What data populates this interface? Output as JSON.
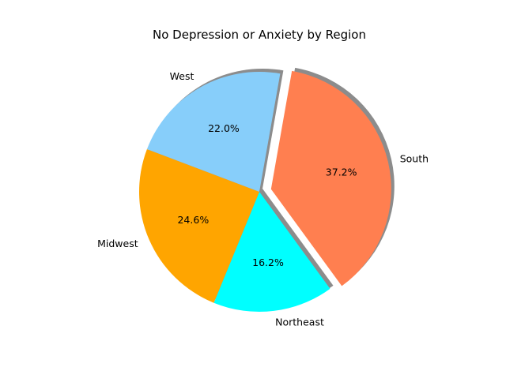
{
  "chart_data": {
    "type": "pie",
    "title": "No Depression or Anxiety by Region",
    "categories": [
      "South",
      "Northeast",
      "Midwest",
      "West"
    ],
    "values": [
      37.2,
      16.2,
      24.6,
      22.0
    ],
    "value_labels": [
      "37.2%",
      "16.2%",
      "24.6%",
      "22.0%"
    ],
    "colors": [
      "#ff7f50",
      "#00ffff",
      "#ffa500",
      "#87cefa"
    ],
    "explode": [
      0.1,
      0,
      0,
      0
    ],
    "shadow": true,
    "start_angle_deg": 80,
    "direction": "clockwise"
  }
}
